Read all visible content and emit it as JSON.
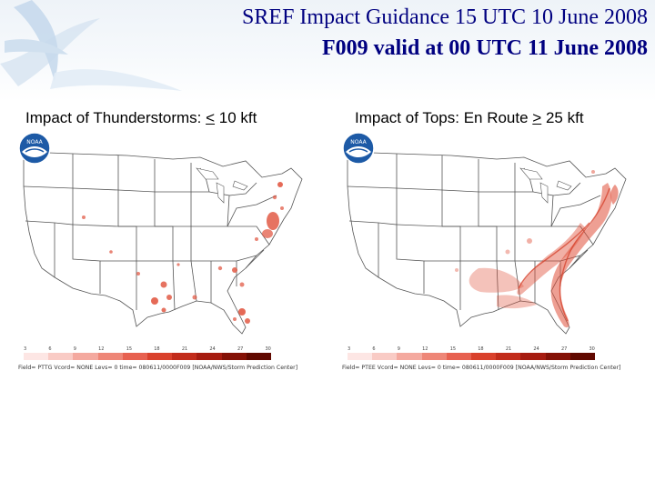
{
  "slide": {
    "title_line1": "SREF Impact Guidance 15 UTC 10 June 2008",
    "title_line2": "F009 valid at 00 UTC 11 June 2008"
  },
  "panels": [
    {
      "title_prefix": "Impact of Thunderstorms: ",
      "title_symbol": "<",
      "title_suffix": " 10 kft",
      "footer": "Field= PTTG Vcord= NONE Levs= 0 time= 080611/0000F009 [NOAA/NWS/Storm Prediction Center]",
      "logo_text": "NOAA"
    },
    {
      "title_prefix": "Impact of Tops: En Route ",
      "title_symbol": ">",
      "title_suffix": " 25 kft",
      "footer": "Field= PTEE Vcord= NONE Levs= 0 time= 080611/0000F009 [NOAA/NWS/Storm Prediction Center]",
      "logo_text": "NOAA"
    }
  ],
  "color_scale": {
    "ticks": [
      "3",
      "6",
      "9",
      "12",
      "15",
      "18",
      "21",
      "24",
      "27",
      "30"
    ],
    "colors": [
      "#fde6e4",
      "#f9cbc5",
      "#f4a99f",
      "#ee8677",
      "#e76150",
      "#d9412c",
      "#c22c1b",
      "#a61c10",
      "#841106",
      "#600800"
    ]
  }
}
